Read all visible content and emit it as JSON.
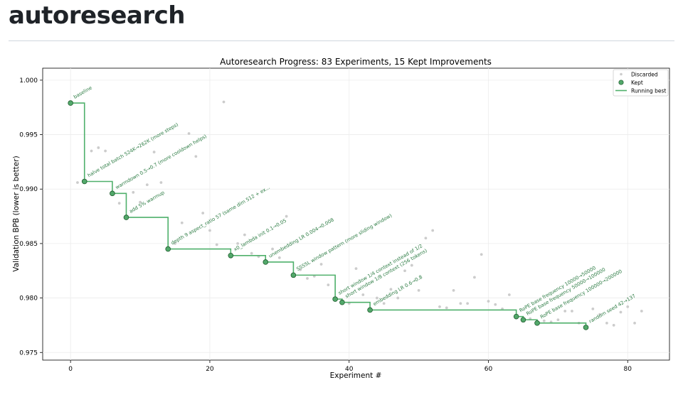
{
  "page": {
    "title": "autoresearch"
  },
  "chart_data": {
    "type": "scatter",
    "title": "Autoresearch Progress: 83 Experiments, 15 Kept Improvements",
    "xlabel": "Experiment #",
    "ylabel": "Validation BPB (lower is better)",
    "xlim": [
      -4,
      86
    ],
    "ylim": [
      0.9743,
      1.0011
    ],
    "xticks": [
      0,
      20,
      40,
      60,
      80
    ],
    "yticks": [
      0.975,
      0.98,
      0.985,
      0.99,
      0.995,
      1.0
    ],
    "ytick_labels": [
      "0.975",
      "0.980",
      "0.985",
      "0.990",
      "0.995",
      "1.000"
    ],
    "grid": true,
    "legend": {
      "position": "top-right",
      "entries": [
        "Discarded",
        "Kept",
        "Running best"
      ]
    },
    "colors": {
      "kept_fill": "#52a86a",
      "kept_edge": "#1f5c2e",
      "running_best": "#4fb06b",
      "discarded": "#cccccc",
      "annotation": "#2e7d45"
    },
    "kept": [
      {
        "x": 0,
        "y": 0.9979,
        "label": "baseline"
      },
      {
        "x": 2,
        "y": 0.9907,
        "label": "halve total batch 524K→262K (more steps)"
      },
      {
        "x": 6,
        "y": 0.9896,
        "label": "warmdown 0.5→0.7 (more cooldown helps)"
      },
      {
        "x": 8,
        "y": 0.9874,
        "label": "add 5% warmup"
      },
      {
        "x": 14,
        "y": 0.9845,
        "label": "depth 9 aspect_ratio 57 (same dim 512 + ex..."
      },
      {
        "x": 23,
        "y": 0.9839,
        "label": "x0_lambda init 0.1→0.05"
      },
      {
        "x": 28,
        "y": 0.9833,
        "label": "unembedding LR 0.004→0.008"
      },
      {
        "x": 32,
        "y": 0.9821,
        "label": "SSSSL window pattern (more sliding window)"
      },
      {
        "x": 38,
        "y": 0.9799,
        "label": "short window 1/4 context instead of 1/2"
      },
      {
        "x": 39,
        "y": 0.9796,
        "label": "short window 1/8 context (256 tokens)"
      },
      {
        "x": 43,
        "y": 0.9789,
        "label": "embedding LR 0.6→0.8"
      },
      {
        "x": 64,
        "y": 0.9783,
        "label": "RoPE base frequency 10000→50000"
      },
      {
        "x": 65,
        "y": 0.978,
        "label": "RoPE base frequency 50000→100000"
      },
      {
        "x": 67,
        "y": 0.9777,
        "label": "RoPE base frequency 100000→200000"
      },
      {
        "x": 74,
        "y": 0.9773,
        "label": "random seed 42→137"
      }
    ],
    "discarded": [
      {
        "x": 1,
        "y": 0.9906
      },
      {
        "x": 3,
        "y": 0.9935
      },
      {
        "x": 4,
        "y": 0.9938
      },
      {
        "x": 5,
        "y": 0.9935
      },
      {
        "x": 7,
        "y": 0.9887
      },
      {
        "x": 9,
        "y": 0.9897
      },
      {
        "x": 10,
        "y": 0.9888
      },
      {
        "x": 11,
        "y": 0.9904
      },
      {
        "x": 12,
        "y": 0.9934
      },
      {
        "x": 13,
        "y": 0.9906
      },
      {
        "x": 15,
        "y": 0.985
      },
      {
        "x": 16,
        "y": 0.9869
      },
      {
        "x": 17,
        "y": 0.9951
      },
      {
        "x": 18,
        "y": 0.993
      },
      {
        "x": 19,
        "y": 0.9878
      },
      {
        "x": 20,
        "y": 0.9862
      },
      {
        "x": 21,
        "y": 0.9849
      },
      {
        "x": 22,
        "y": 0.998
      },
      {
        "x": 24,
        "y": 0.985
      },
      {
        "x": 25,
        "y": 0.9858
      },
      {
        "x": 26,
        "y": 0.9841
      },
      {
        "x": 27,
        "y": 0.9838
      },
      {
        "x": 29,
        "y": 0.9845
      },
      {
        "x": 30,
        "y": 0.9837
      },
      {
        "x": 31,
        "y": 0.9875
      },
      {
        "x": 33,
        "y": 0.9826
      },
      {
        "x": 34,
        "y": 0.9818
      },
      {
        "x": 35,
        "y": 0.982
      },
      {
        "x": 36,
        "y": 0.9831
      },
      {
        "x": 37,
        "y": 0.9812
      },
      {
        "x": 40,
        "y": 0.9795
      },
      {
        "x": 41,
        "y": 0.9827
      },
      {
        "x": 42,
        "y": 0.9803
      },
      {
        "x": 44,
        "y": 0.98
      },
      {
        "x": 45,
        "y": 0.9795
      },
      {
        "x": 46,
        "y": 0.9808
      },
      {
        "x": 47,
        "y": 0.98
      },
      {
        "x": 48,
        "y": 0.9825
      },
      {
        "x": 49,
        "y": 0.983
      },
      {
        "x": 50,
        "y": 0.9807
      },
      {
        "x": 51,
        "y": 0.9855
      },
      {
        "x": 52,
        "y": 0.9862
      },
      {
        "x": 53,
        "y": 0.9792
      },
      {
        "x": 54,
        "y": 0.9791
      },
      {
        "x": 55,
        "y": 0.9807
      },
      {
        "x": 56,
        "y": 0.9795
      },
      {
        "x": 57,
        "y": 0.9795
      },
      {
        "x": 58,
        "y": 0.9819
      },
      {
        "x": 59,
        "y": 0.984
      },
      {
        "x": 60,
        "y": 0.9797
      },
      {
        "x": 61,
        "y": 0.9794
      },
      {
        "x": 62,
        "y": 0.979
      },
      {
        "x": 63,
        "y": 0.9803
      },
      {
        "x": 66,
        "y": 0.9781
      },
      {
        "x": 68,
        "y": 0.9779
      },
      {
        "x": 69,
        "y": 0.9778
      },
      {
        "x": 70,
        "y": 0.978
      },
      {
        "x": 71,
        "y": 0.9788
      },
      {
        "x": 72,
        "y": 0.9788
      },
      {
        "x": 73,
        "y": 0.9777
      },
      {
        "x": 75,
        "y": 0.979
      },
      {
        "x": 76,
        "y": 0.9785
      },
      {
        "x": 77,
        "y": 0.9777
      },
      {
        "x": 78,
        "y": 0.9775
      },
      {
        "x": 79,
        "y": 0.9787
      },
      {
        "x": 80,
        "y": 0.9792
      },
      {
        "x": 81,
        "y": 0.9777
      },
      {
        "x": 82,
        "y": 0.9788
      }
    ]
  }
}
